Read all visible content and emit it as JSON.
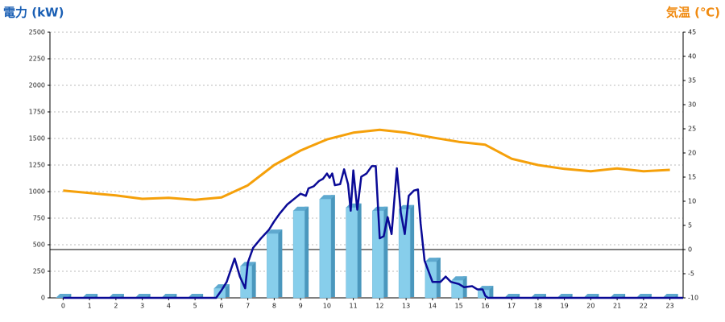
{
  "chart_data": {
    "type": "bar-line",
    "y_title": "電力 (kW)",
    "y2_title": "気温 (℃)",
    "categories": [
      "0",
      "1",
      "2",
      "3",
      "4",
      "5",
      "6",
      "7",
      "8",
      "9",
      "10",
      "11",
      "12",
      "13",
      "14",
      "15",
      "16",
      "17",
      "18",
      "19",
      "20",
      "21",
      "22",
      "23"
    ],
    "xlim": [
      -0.5,
      23.5
    ],
    "ylim": [
      0,
      2500
    ],
    "yticks": [
      0,
      250,
      500,
      750,
      1000,
      1250,
      1500,
      1750,
      2000,
      2250,
      2500
    ],
    "y2lim": [
      -10,
      45
    ],
    "y2ticks": [
      -10,
      -5,
      0,
      5,
      10,
      15,
      20,
      25,
      30,
      35,
      40,
      45
    ],
    "grid": true,
    "series": [
      {
        "type": "bar",
        "color": "#87ceeb",
        "values": [
          0,
          0,
          0,
          0,
          0,
          0,
          90,
          300,
          605,
          820,
          930,
          850,
          820,
          835,
          340,
          165,
          75,
          0,
          0,
          0,
          0,
          0,
          0,
          0
        ]
      },
      {
        "type": "line",
        "color": "#0a0a96",
        "x": [
          0,
          5.8,
          6.0,
          6.2,
          6.5,
          6.7,
          6.9,
          7.0,
          7.2,
          7.5,
          7.8,
          8.0,
          8.2,
          8.5,
          8.8,
          9.0,
          9.2,
          9.3,
          9.5,
          9.7,
          9.85,
          10.0,
          10.1,
          10.2,
          10.3,
          10.5,
          10.65,
          10.8,
          10.9,
          11.0,
          11.15,
          11.3,
          11.5,
          11.7,
          11.85,
          12.0,
          12.15,
          12.3,
          12.45,
          12.65,
          12.8,
          12.95,
          13.1,
          13.3,
          13.45,
          13.55,
          13.7,
          13.85,
          14.0,
          14.3,
          14.5,
          14.7,
          15.0,
          15.2,
          15.5,
          15.7,
          15.9,
          16.0,
          16.1,
          23.5
        ],
        "values": [
          0,
          0,
          70,
          150,
          370,
          200,
          90,
          330,
          470,
          560,
          640,
          720,
          790,
          880,
          940,
          980,
          960,
          1030,
          1050,
          1100,
          1120,
          1170,
          1130,
          1170,
          1060,
          1070,
          1210,
          1070,
          820,
          1200,
          830,
          1140,
          1170,
          1240,
          1240,
          560,
          580,
          760,
          600,
          1220,
          800,
          600,
          960,
          1010,
          1020,
          700,
          350,
          250,
          150,
          150,
          200,
          150,
          130,
          100,
          110,
          80,
          80,
          20,
          0,
          0
        ]
      },
      {
        "type": "line",
        "axis": "y2",
        "color": "#f5a00a",
        "values": [
          12.2,
          11.7,
          11.2,
          10.5,
          10.7,
          10.3,
          10.8,
          13.3,
          17.5,
          20.5,
          22.8,
          24.2,
          24.8,
          24.2,
          23.2,
          22.3,
          21.7,
          18.8,
          17.5,
          16.7,
          16.2,
          16.8,
          16.2,
          16.5
        ]
      }
    ]
  }
}
